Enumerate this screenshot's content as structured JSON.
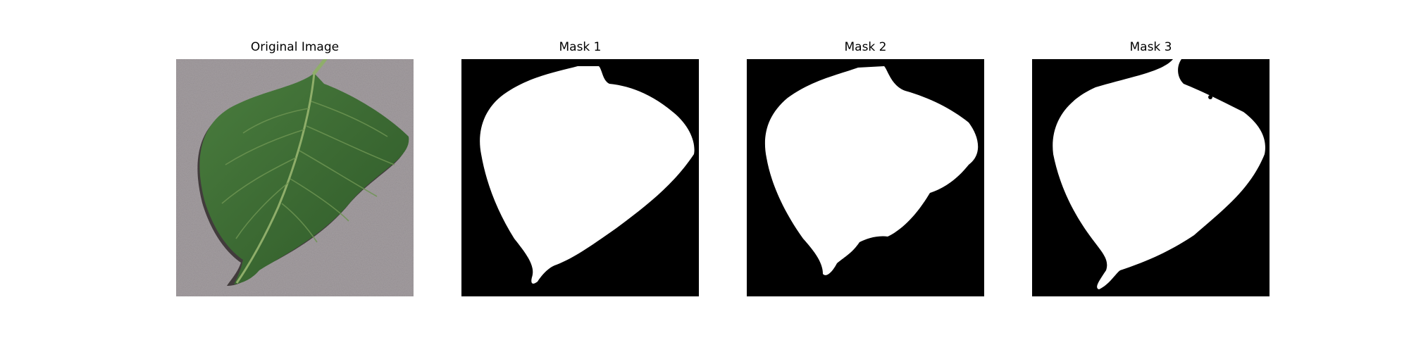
{
  "figure": {
    "panels": [
      {
        "title": "Original Image",
        "content": "leaf-photo",
        "colors": {
          "background": "#a39da0",
          "leaf": "#3f6f35",
          "vein": "#8fae6a",
          "shadow": "#2a2424"
        }
      },
      {
        "title": "Mask 1",
        "content": "binary-mask",
        "colors": {
          "background": "#000000",
          "foreground": "#ffffff"
        }
      },
      {
        "title": "Mask 2",
        "content": "binary-mask",
        "colors": {
          "background": "#000000",
          "foreground": "#ffffff"
        }
      },
      {
        "title": "Mask 3",
        "content": "binary-mask",
        "colors": {
          "background": "#000000",
          "foreground": "#ffffff"
        }
      }
    ]
  }
}
